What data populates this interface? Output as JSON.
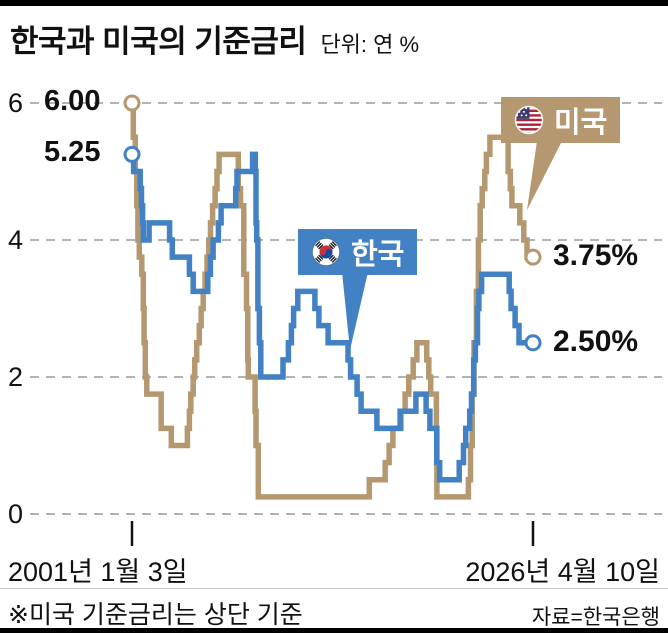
{
  "title": "한국과 미국의 기준금리",
  "unit_label": "단위: 연 %",
  "y_axis": {
    "labels": [
      "6",
      "4",
      "2",
      "0"
    ],
    "values": [
      6,
      4,
      2,
      0
    ]
  },
  "x_axis": {
    "start_label": "2001년 1월 3일",
    "end_label": "2026년 4월 10일"
  },
  "annotations": {
    "us_start": "6.00",
    "kr_start": "5.25",
    "us_end": "3.75%",
    "kr_end": "2.50%"
  },
  "legend": {
    "us_label": "미국",
    "kr_label": "한국"
  },
  "footnote": "※미국 기준금리는 상단 기준",
  "source": "자료=한국은행",
  "colors": {
    "us": "#b5986f",
    "kr": "#4181c4",
    "grid": "#b3b3b3",
    "text": "#111111"
  },
  "chart_data": {
    "type": "line",
    "step": true,
    "title": "한국과 미국의 기준금리",
    "ylabel": "연 %",
    "xlabel": "2001년 1월 3일 ~ 2026년 4월 10일",
    "ylim": [
      0,
      6.5
    ],
    "xlim": [
      2001.0,
      2026.28
    ],
    "yticks": [
      0,
      2,
      4,
      6
    ],
    "grid": "dashed-horizontal",
    "legend_position": "inline-callouts",
    "series": [
      {
        "name": "미국",
        "color": "#b5986f",
        "start_value": 6.0,
        "end_value": 3.75,
        "points": [
          [
            2001.0,
            6.0
          ],
          [
            2001.08,
            5.5
          ],
          [
            2001.21,
            5.0
          ],
          [
            2001.3,
            4.5
          ],
          [
            2001.37,
            4.0
          ],
          [
            2001.46,
            3.75
          ],
          [
            2001.62,
            3.5
          ],
          [
            2001.71,
            3.0
          ],
          [
            2001.76,
            2.5
          ],
          [
            2001.84,
            2.0
          ],
          [
            2001.93,
            1.75
          ],
          [
            2002.84,
            1.25
          ],
          [
            2003.48,
            1.0
          ],
          [
            2004.49,
            1.25
          ],
          [
            2004.62,
            1.5
          ],
          [
            2004.71,
            1.75
          ],
          [
            2004.86,
            2.0
          ],
          [
            2004.95,
            2.25
          ],
          [
            2005.08,
            2.5
          ],
          [
            2005.24,
            2.75
          ],
          [
            2005.36,
            3.0
          ],
          [
            2005.49,
            3.25
          ],
          [
            2005.61,
            3.5
          ],
          [
            2005.73,
            3.75
          ],
          [
            2005.84,
            4.0
          ],
          [
            2005.95,
            4.25
          ],
          [
            2006.08,
            4.5
          ],
          [
            2006.24,
            4.75
          ],
          [
            2006.36,
            5.0
          ],
          [
            2006.49,
            5.25
          ],
          [
            2007.7,
            4.75
          ],
          [
            2007.84,
            4.5
          ],
          [
            2008.05,
            3.5
          ],
          [
            2008.22,
            3.0
          ],
          [
            2008.3,
            2.25
          ],
          [
            2008.33,
            2.0
          ],
          [
            2008.76,
            1.5
          ],
          [
            2008.82,
            1.0
          ],
          [
            2008.96,
            0.25
          ],
          [
            2015.96,
            0.5
          ],
          [
            2016.96,
            0.75
          ],
          [
            2017.21,
            1.0
          ],
          [
            2017.45,
            1.25
          ],
          [
            2017.96,
            1.5
          ],
          [
            2018.22,
            1.75
          ],
          [
            2018.45,
            2.0
          ],
          [
            2018.73,
            2.25
          ],
          [
            2018.96,
            2.5
          ],
          [
            2019.58,
            2.25
          ],
          [
            2019.71,
            2.0
          ],
          [
            2019.83,
            1.75
          ],
          [
            2020.19,
            1.25
          ],
          [
            2020.22,
            0.25
          ],
          [
            2022.21,
            0.5
          ],
          [
            2022.34,
            1.0
          ],
          [
            2022.45,
            1.75
          ],
          [
            2022.56,
            2.5
          ],
          [
            2022.71,
            3.25
          ],
          [
            2022.84,
            4.0
          ],
          [
            2022.95,
            4.5
          ],
          [
            2023.08,
            4.75
          ],
          [
            2023.24,
            5.0
          ],
          [
            2023.34,
            5.25
          ],
          [
            2023.56,
            5.5
          ],
          [
            2024.71,
            5.0
          ],
          [
            2024.85,
            4.75
          ],
          [
            2024.95,
            4.5
          ],
          [
            2025.45,
            4.25
          ],
          [
            2025.7,
            4.0
          ],
          [
            2025.9,
            3.75
          ]
        ]
      },
      {
        "name": "한국",
        "color": "#4181c4",
        "start_value": 5.25,
        "end_value": 2.5,
        "points": [
          [
            2001.0,
            5.25
          ],
          [
            2001.1,
            5.0
          ],
          [
            2001.52,
            4.75
          ],
          [
            2001.6,
            4.5
          ],
          [
            2001.67,
            4.25
          ],
          [
            2001.71,
            4.0
          ],
          [
            2002.08,
            4.25
          ],
          [
            2003.37,
            4.0
          ],
          [
            2003.54,
            3.75
          ],
          [
            2004.62,
            3.5
          ],
          [
            2004.86,
            3.25
          ],
          [
            2005.78,
            3.5
          ],
          [
            2005.94,
            3.75
          ],
          [
            2006.11,
            4.0
          ],
          [
            2006.45,
            4.25
          ],
          [
            2006.62,
            4.5
          ],
          [
            2007.54,
            4.75
          ],
          [
            2007.62,
            5.0
          ],
          [
            2008.6,
            5.25
          ],
          [
            2008.77,
            5.0
          ],
          [
            2008.82,
            4.25
          ],
          [
            2008.86,
            4.0
          ],
          [
            2008.94,
            3.0
          ],
          [
            2009.03,
            2.5
          ],
          [
            2009.12,
            2.0
          ],
          [
            2010.52,
            2.25
          ],
          [
            2010.86,
            2.5
          ],
          [
            2011.05,
            2.75
          ],
          [
            2011.19,
            3.0
          ],
          [
            2011.45,
            3.25
          ],
          [
            2012.53,
            3.0
          ],
          [
            2012.78,
            2.75
          ],
          [
            2013.36,
            2.5
          ],
          [
            2014.62,
            2.25
          ],
          [
            2014.78,
            2.0
          ],
          [
            2015.19,
            1.75
          ],
          [
            2015.44,
            1.5
          ],
          [
            2016.44,
            1.25
          ],
          [
            2017.9,
            1.5
          ],
          [
            2018.9,
            1.75
          ],
          [
            2019.54,
            1.5
          ],
          [
            2019.78,
            1.25
          ],
          [
            2020.21,
            0.75
          ],
          [
            2020.4,
            0.5
          ],
          [
            2021.63,
            0.75
          ],
          [
            2021.9,
            1.0
          ],
          [
            2022.04,
            1.25
          ],
          [
            2022.29,
            1.5
          ],
          [
            2022.4,
            1.75
          ],
          [
            2022.54,
            2.25
          ],
          [
            2022.65,
            2.5
          ],
          [
            2022.78,
            3.0
          ],
          [
            2022.87,
            3.25
          ],
          [
            2023.04,
            3.5
          ],
          [
            2024.78,
            3.25
          ],
          [
            2024.9,
            3.0
          ],
          [
            2025.15,
            2.75
          ],
          [
            2025.4,
            2.5
          ]
        ]
      }
    ]
  }
}
